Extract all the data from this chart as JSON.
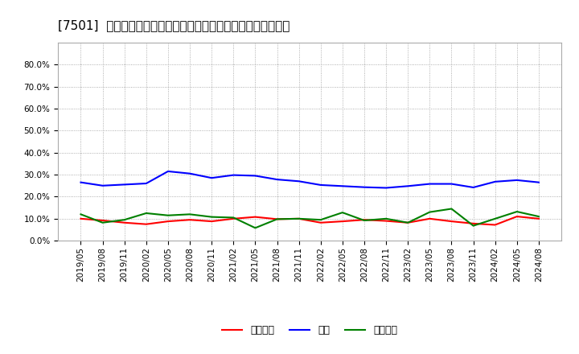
{
  "title": "[7501]  売上債権、在庫、買入債務の総資産に対する比率の推移",
  "x_labels": [
    "2019/05",
    "2019/08",
    "2019/11",
    "2020/02",
    "2020/05",
    "2020/08",
    "2020/11",
    "2021/02",
    "2021/05",
    "2021/08",
    "2021/11",
    "2022/02",
    "2022/05",
    "2022/08",
    "2022/11",
    "2023/02",
    "2023/05",
    "2023/08",
    "2023/11",
    "2024/02",
    "2024/05",
    "2024/08"
  ],
  "uriage_saiken": [
    0.1,
    0.092,
    0.082,
    0.075,
    0.088,
    0.095,
    0.088,
    0.1,
    0.108,
    0.098,
    0.1,
    0.082,
    0.088,
    0.095,
    0.09,
    0.082,
    0.1,
    0.088,
    0.078,
    0.072,
    0.11,
    0.1
  ],
  "zaiko": [
    0.265,
    0.25,
    0.255,
    0.26,
    0.315,
    0.305,
    0.285,
    0.298,
    0.295,
    0.278,
    0.27,
    0.253,
    0.248,
    0.243,
    0.24,
    0.248,
    0.258,
    0.258,
    0.242,
    0.268,
    0.275,
    0.265
  ],
  "kainyu_saimu": [
    0.12,
    0.082,
    0.095,
    0.125,
    0.115,
    0.12,
    0.108,
    0.105,
    0.058,
    0.098,
    0.1,
    0.095,
    0.128,
    0.092,
    0.1,
    0.082,
    0.13,
    0.145,
    0.068,
    0.1,
    0.132,
    0.11
  ],
  "line_colors": [
    "#ff0000",
    "#0000ff",
    "#008000"
  ],
  "legend_labels": [
    "売上債権",
    "在庫",
    "買入債務"
  ],
  "ylim": [
    0.0,
    0.9
  ],
  "yticks": [
    0.0,
    0.1,
    0.2,
    0.3,
    0.4,
    0.5,
    0.6,
    0.7,
    0.8
  ],
  "background_color": "#ffffff",
  "plot_bg_color": "#ffffff",
  "grid_color": "#999999",
  "title_fontsize": 11,
  "tick_fontsize": 7.5,
  "legend_fontsize": 9
}
